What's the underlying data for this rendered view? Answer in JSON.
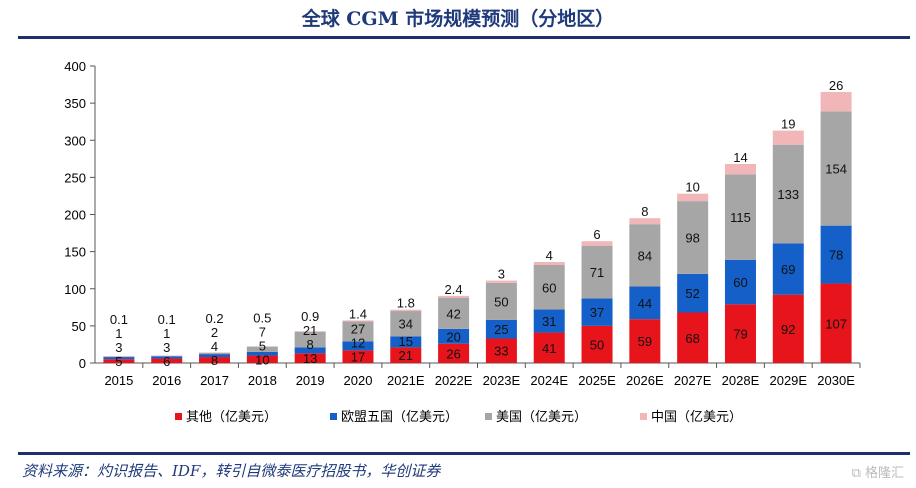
{
  "title": "全球 CGM 市场规模预测（分地区）",
  "source": "资料来源：灼识报告、IDF，转引自微泰医疗招股书，华创证券",
  "watermark": "格隆汇",
  "chart_data": {
    "type": "bar",
    "stacked": true,
    "categories": [
      "2015",
      "2016",
      "2017",
      "2018",
      "2019",
      "2020",
      "2021E",
      "2022E",
      "2023E",
      "2024E",
      "2025E",
      "2026E",
      "2027E",
      "2028E",
      "2029E",
      "2030E"
    ],
    "ylim": [
      0,
      400
    ],
    "yticks": [
      0,
      50,
      100,
      150,
      200,
      250,
      300,
      350,
      400
    ],
    "legend_position": "bottom",
    "series": [
      {
        "name": "其他（亿美元）",
        "color": "#e8141c",
        "values": [
          5,
          6,
          8,
          10,
          13,
          17,
          21,
          26,
          33,
          41,
          50,
          59,
          68,
          79,
          92,
          107
        ]
      },
      {
        "name": "欧盟五国（亿美元）",
        "color": "#1560c8",
        "values": [
          3,
          3,
          4,
          5,
          8,
          12,
          15,
          20,
          25,
          31,
          37,
          44,
          52,
          60,
          69,
          78
        ]
      },
      {
        "name": "美国（亿美元）",
        "color": "#a6a6a6",
        "values": [
          1,
          1,
          2,
          7,
          21,
          27,
          34,
          42,
          50,
          60,
          71,
          84,
          98,
          115,
          133,
          154
        ]
      },
      {
        "name": "中国（亿美元）",
        "color": "#f0b6b8",
        "values": [
          0.1,
          0.1,
          0.2,
          0.5,
          0.9,
          1.4,
          1.8,
          2.4,
          3,
          4,
          6,
          8,
          10,
          14,
          19,
          26
        ]
      }
    ]
  }
}
